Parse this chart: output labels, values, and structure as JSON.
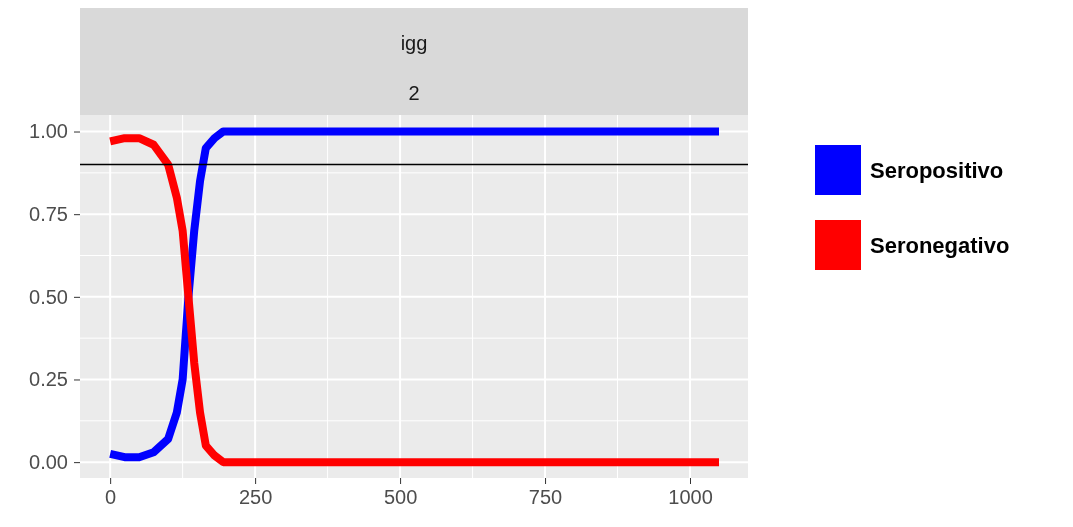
{
  "chart_data": {
    "type": "line",
    "title": "igg",
    "subtitle": "2",
    "xlim": [
      -52,
      1100
    ],
    "xticks": [
      0,
      250,
      500,
      750,
      1000
    ],
    "ylim": [
      -0.048,
      1.05
    ],
    "yticks": [
      {
        "value": 0,
        "label": "0.00"
      },
      {
        "value": 0.25,
        "label": "0.25"
      },
      {
        "value": 0.5,
        "label": "0.50"
      },
      {
        "value": 0.75,
        "label": "0.75"
      },
      {
        "value": 1,
        "label": "1.00"
      }
    ],
    "x": [
      0,
      25,
      50,
      75,
      100,
      115,
      125,
      135,
      145,
      155,
      165,
      180,
      195,
      1050
    ],
    "series": [
      {
        "name": "Seropositivo",
        "color": "#0000ff",
        "values": [
          0.025,
          0.015,
          0.015,
          0.03,
          0.07,
          0.15,
          0.25,
          0.5,
          0.7,
          0.85,
          0.95,
          0.98,
          1.0,
          1.0
        ]
      },
      {
        "name": "Seronegativo",
        "color": "#ff0000",
        "values": [
          0.97,
          0.98,
          0.98,
          0.96,
          0.9,
          0.8,
          0.7,
          0.5,
          0.3,
          0.15,
          0.05,
          0.02,
          0.0,
          0.0
        ]
      }
    ],
    "ref_lines": [
      {
        "axis": "y",
        "value": 0.9,
        "color": "#000000"
      }
    ],
    "grid": true,
    "legend": "right",
    "marker": "none",
    "line_style": "solid"
  }
}
